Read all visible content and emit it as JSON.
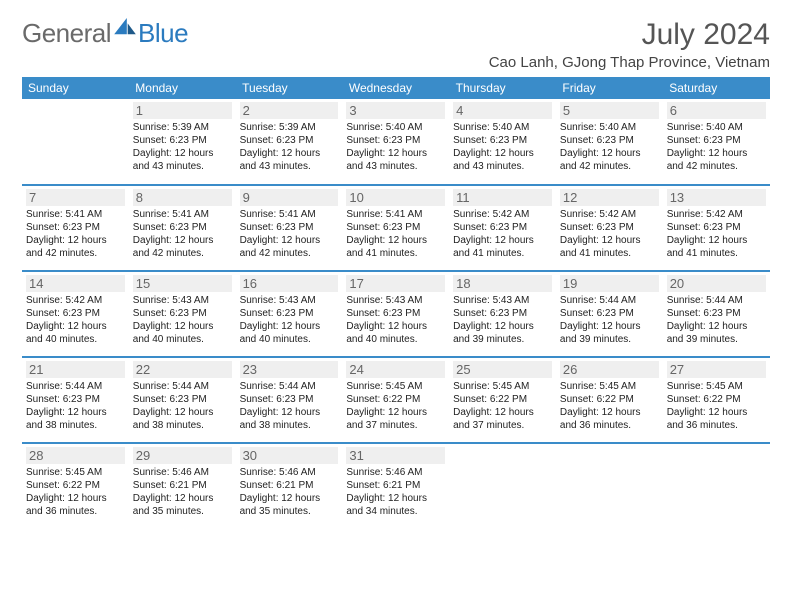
{
  "brand": {
    "part1": "General",
    "part2": "Blue"
  },
  "title": "July 2024",
  "location": "Cao Lanh, GJong Thap Province, Vietnam",
  "colors": {
    "header_bg": "#3a8cc9",
    "header_text": "#ffffff",
    "daynum_bg": "#efefef",
    "border": "#3a8cc9",
    "logo_blue": "#2b7bbf",
    "logo_gray": "#6a6a6a",
    "page_bg": "#ffffff"
  },
  "weekdays": [
    "Sunday",
    "Monday",
    "Tuesday",
    "Wednesday",
    "Thursday",
    "Friday",
    "Saturday"
  ],
  "weeks": [
    [
      {
        "day": "",
        "sunrise": "",
        "sunset": "",
        "daylight": ""
      },
      {
        "day": "1",
        "sunrise": "Sunrise: 5:39 AM",
        "sunset": "Sunset: 6:23 PM",
        "daylight": "Daylight: 12 hours and 43 minutes."
      },
      {
        "day": "2",
        "sunrise": "Sunrise: 5:39 AM",
        "sunset": "Sunset: 6:23 PM",
        "daylight": "Daylight: 12 hours and 43 minutes."
      },
      {
        "day": "3",
        "sunrise": "Sunrise: 5:40 AM",
        "sunset": "Sunset: 6:23 PM",
        "daylight": "Daylight: 12 hours and 43 minutes."
      },
      {
        "day": "4",
        "sunrise": "Sunrise: 5:40 AM",
        "sunset": "Sunset: 6:23 PM",
        "daylight": "Daylight: 12 hours and 43 minutes."
      },
      {
        "day": "5",
        "sunrise": "Sunrise: 5:40 AM",
        "sunset": "Sunset: 6:23 PM",
        "daylight": "Daylight: 12 hours and 42 minutes."
      },
      {
        "day": "6",
        "sunrise": "Sunrise: 5:40 AM",
        "sunset": "Sunset: 6:23 PM",
        "daylight": "Daylight: 12 hours and 42 minutes."
      }
    ],
    [
      {
        "day": "7",
        "sunrise": "Sunrise: 5:41 AM",
        "sunset": "Sunset: 6:23 PM",
        "daylight": "Daylight: 12 hours and 42 minutes."
      },
      {
        "day": "8",
        "sunrise": "Sunrise: 5:41 AM",
        "sunset": "Sunset: 6:23 PM",
        "daylight": "Daylight: 12 hours and 42 minutes."
      },
      {
        "day": "9",
        "sunrise": "Sunrise: 5:41 AM",
        "sunset": "Sunset: 6:23 PM",
        "daylight": "Daylight: 12 hours and 42 minutes."
      },
      {
        "day": "10",
        "sunrise": "Sunrise: 5:41 AM",
        "sunset": "Sunset: 6:23 PM",
        "daylight": "Daylight: 12 hours and 41 minutes."
      },
      {
        "day": "11",
        "sunrise": "Sunrise: 5:42 AM",
        "sunset": "Sunset: 6:23 PM",
        "daylight": "Daylight: 12 hours and 41 minutes."
      },
      {
        "day": "12",
        "sunrise": "Sunrise: 5:42 AM",
        "sunset": "Sunset: 6:23 PM",
        "daylight": "Daylight: 12 hours and 41 minutes."
      },
      {
        "day": "13",
        "sunrise": "Sunrise: 5:42 AM",
        "sunset": "Sunset: 6:23 PM",
        "daylight": "Daylight: 12 hours and 41 minutes."
      }
    ],
    [
      {
        "day": "14",
        "sunrise": "Sunrise: 5:42 AM",
        "sunset": "Sunset: 6:23 PM",
        "daylight": "Daylight: 12 hours and 40 minutes."
      },
      {
        "day": "15",
        "sunrise": "Sunrise: 5:43 AM",
        "sunset": "Sunset: 6:23 PM",
        "daylight": "Daylight: 12 hours and 40 minutes."
      },
      {
        "day": "16",
        "sunrise": "Sunrise: 5:43 AM",
        "sunset": "Sunset: 6:23 PM",
        "daylight": "Daylight: 12 hours and 40 minutes."
      },
      {
        "day": "17",
        "sunrise": "Sunrise: 5:43 AM",
        "sunset": "Sunset: 6:23 PM",
        "daylight": "Daylight: 12 hours and 40 minutes."
      },
      {
        "day": "18",
        "sunrise": "Sunrise: 5:43 AM",
        "sunset": "Sunset: 6:23 PM",
        "daylight": "Daylight: 12 hours and 39 minutes."
      },
      {
        "day": "19",
        "sunrise": "Sunrise: 5:44 AM",
        "sunset": "Sunset: 6:23 PM",
        "daylight": "Daylight: 12 hours and 39 minutes."
      },
      {
        "day": "20",
        "sunrise": "Sunrise: 5:44 AM",
        "sunset": "Sunset: 6:23 PM",
        "daylight": "Daylight: 12 hours and 39 minutes."
      }
    ],
    [
      {
        "day": "21",
        "sunrise": "Sunrise: 5:44 AM",
        "sunset": "Sunset: 6:23 PM",
        "daylight": "Daylight: 12 hours and 38 minutes."
      },
      {
        "day": "22",
        "sunrise": "Sunrise: 5:44 AM",
        "sunset": "Sunset: 6:23 PM",
        "daylight": "Daylight: 12 hours and 38 minutes."
      },
      {
        "day": "23",
        "sunrise": "Sunrise: 5:44 AM",
        "sunset": "Sunset: 6:23 PM",
        "daylight": "Daylight: 12 hours and 38 minutes."
      },
      {
        "day": "24",
        "sunrise": "Sunrise: 5:45 AM",
        "sunset": "Sunset: 6:22 PM",
        "daylight": "Daylight: 12 hours and 37 minutes."
      },
      {
        "day": "25",
        "sunrise": "Sunrise: 5:45 AM",
        "sunset": "Sunset: 6:22 PM",
        "daylight": "Daylight: 12 hours and 37 minutes."
      },
      {
        "day": "26",
        "sunrise": "Sunrise: 5:45 AM",
        "sunset": "Sunset: 6:22 PM",
        "daylight": "Daylight: 12 hours and 36 minutes."
      },
      {
        "day": "27",
        "sunrise": "Sunrise: 5:45 AM",
        "sunset": "Sunset: 6:22 PM",
        "daylight": "Daylight: 12 hours and 36 minutes."
      }
    ],
    [
      {
        "day": "28",
        "sunrise": "Sunrise: 5:45 AM",
        "sunset": "Sunset: 6:22 PM",
        "daylight": "Daylight: 12 hours and 36 minutes."
      },
      {
        "day": "29",
        "sunrise": "Sunrise: 5:46 AM",
        "sunset": "Sunset: 6:21 PM",
        "daylight": "Daylight: 12 hours and 35 minutes."
      },
      {
        "day": "30",
        "sunrise": "Sunrise: 5:46 AM",
        "sunset": "Sunset: 6:21 PM",
        "daylight": "Daylight: 12 hours and 35 minutes."
      },
      {
        "day": "31",
        "sunrise": "Sunrise: 5:46 AM",
        "sunset": "Sunset: 6:21 PM",
        "daylight": "Daylight: 12 hours and 34 minutes."
      },
      {
        "day": "",
        "sunrise": "",
        "sunset": "",
        "daylight": ""
      },
      {
        "day": "",
        "sunrise": "",
        "sunset": "",
        "daylight": ""
      },
      {
        "day": "",
        "sunrise": "",
        "sunset": "",
        "daylight": ""
      }
    ]
  ]
}
